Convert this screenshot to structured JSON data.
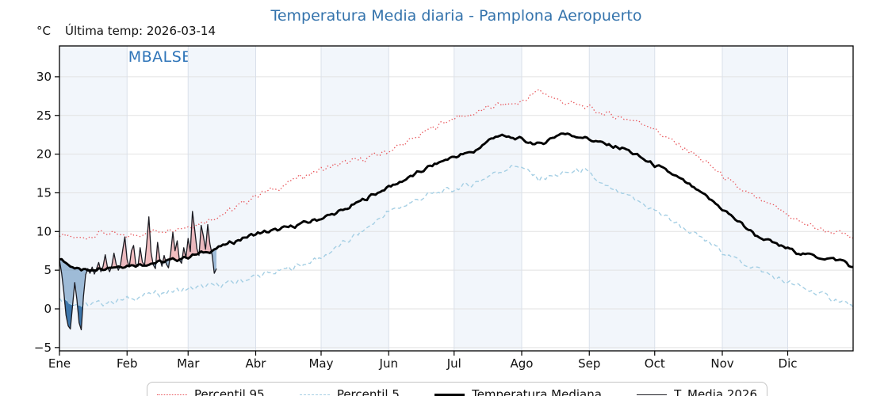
{
  "page": {
    "title": "Temperatura Media diaria - Pamplona Aeropuerto",
    "unit_label": "°C",
    "last_temp_annotation": "Última temp: 2026-03-14",
    "watermark": "WWW.EMBALSES.NET"
  },
  "colors": {
    "title_blue": "#3473ac",
    "watermark_blue": "#2e74b8",
    "p95_red": "#e8555a",
    "p5_blue": "#a5cfe4",
    "median_black": "#000000",
    "t2026_dark": "#1b1b22",
    "fill_above_median": "rgba(225,100,104,0.42)",
    "fill_below_median": "rgba(90,138,185,0.55)",
    "fill_below_p5": "#3d77ac",
    "month_band": "#f2f6fb",
    "grid_horizontal": "#e2e2e2",
    "grid_vertical": "#dae0ea",
    "axis_black": "#000000"
  },
  "legend": {
    "items": [
      {
        "label": "Percentil 95"
      },
      {
        "label": "Percentil 5"
      },
      {
        "label": "Temperatura Mediana"
      },
      {
        "label": "T. Media 2026"
      }
    ]
  },
  "chart_data": {
    "type": "line",
    "title": "Temperatura Media diaria - Pamplona Aeropuerto",
    "ylabel": "°C",
    "annotation": "Última temp: 2026-03-14",
    "months": [
      "Ene",
      "Feb",
      "Mar",
      "Abr",
      "May",
      "Jun",
      "Jul",
      "Ago",
      "Sep",
      "Oct",
      "Nov",
      "Dic"
    ],
    "month_start_days": [
      1,
      32,
      60,
      91,
      121,
      152,
      182,
      213,
      244,
      274,
      305,
      335
    ],
    "days_in_year": 365,
    "yticks": [
      -5,
      0,
      5,
      10,
      15,
      20,
      25,
      30
    ],
    "ylim": [
      -5.4,
      34.0
    ],
    "grid": true,
    "legend_position": "bottom",
    "series": [
      {
        "name": "Percentil 95",
        "style": "dotted",
        "width": 1.3,
        "x": [
          1,
          11,
          21,
          31,
          41,
          51,
          61,
          71,
          81,
          91,
          101,
          111,
          121,
          131,
          141,
          151,
          161,
          171,
          181,
          191,
          201,
          211,
          221,
          231,
          241,
          251,
          261,
          271,
          281,
          291,
          301,
          311,
          321,
          331,
          341,
          351,
          361,
          365
        ],
        "y": [
          9.4,
          9.1,
          9.9,
          9.3,
          9.9,
          10.3,
          10.7,
          11.7,
          12.9,
          14.7,
          15.6,
          17.0,
          18.0,
          18.8,
          19.4,
          20.3,
          21.6,
          23.2,
          24.6,
          25.2,
          26.3,
          26.5,
          28.2,
          26.8,
          26.2,
          25.2,
          24.6,
          23.8,
          21.8,
          20.2,
          18.2,
          15.8,
          14.2,
          12.8,
          11.2,
          10.2,
          9.6,
          9.0
        ]
      },
      {
        "name": "Percentil 5",
        "style": "dashed",
        "width": 1.4,
        "x": [
          1,
          11,
          21,
          31,
          41,
          51,
          61,
          71,
          81,
          91,
          101,
          111,
          121,
          131,
          141,
          151,
          161,
          171,
          181,
          191,
          201,
          211,
          221,
          231,
          241,
          251,
          261,
          271,
          281,
          291,
          301,
          311,
          321,
          331,
          341,
          351,
          361,
          365
        ],
        "y": [
          1.5,
          0.4,
          0.8,
          1.2,
          1.8,
          2.2,
          2.6,
          3.0,
          3.4,
          4.2,
          4.8,
          5.6,
          6.6,
          8.4,
          10.2,
          12.4,
          13.6,
          14.8,
          15.4,
          16.2,
          17.6,
          18.6,
          16.8,
          17.4,
          18.0,
          15.8,
          14.6,
          13.2,
          11.6,
          9.8,
          8.2,
          6.4,
          5.2,
          3.8,
          2.8,
          1.8,
          0.8,
          0.3
        ]
      },
      {
        "name": "Temperatura Mediana",
        "style": "solid",
        "width": 2.9,
        "x": [
          1,
          11,
          21,
          31,
          41,
          51,
          61,
          71,
          81,
          91,
          101,
          111,
          121,
          131,
          141,
          151,
          161,
          171,
          181,
          191,
          201,
          211,
          221,
          231,
          241,
          251,
          261,
          271,
          281,
          291,
          301,
          311,
          321,
          331,
          341,
          351,
          361,
          365
        ],
        "y": [
          6.4,
          5.0,
          5.3,
          5.6,
          5.8,
          6.2,
          6.8,
          7.6,
          8.7,
          9.7,
          10.2,
          10.9,
          11.7,
          12.7,
          14.2,
          15.6,
          16.9,
          18.4,
          19.6,
          20.3,
          22.4,
          22.0,
          21.2,
          22.7,
          22.2,
          21.3,
          20.6,
          19.0,
          17.6,
          15.8,
          13.8,
          11.6,
          9.4,
          8.2,
          7.2,
          6.6,
          6.2,
          5.2
        ]
      },
      {
        "name": "T. Media 2026",
        "style": "solid",
        "width": 1.3,
        "x": [
          1,
          2,
          3,
          4,
          5,
          6,
          7,
          8,
          9,
          10,
          11,
          12,
          13,
          14,
          15,
          16,
          17,
          18,
          19,
          20,
          21,
          22,
          23,
          24,
          25,
          26,
          27,
          28,
          29,
          30,
          31,
          32,
          33,
          34,
          35,
          36,
          37,
          38,
          39,
          40,
          41,
          42,
          43,
          44,
          45,
          46,
          47,
          48,
          49,
          50,
          51,
          52,
          53,
          54,
          55,
          56,
          57,
          58,
          59,
          60,
          61,
          62,
          63,
          64,
          65,
          66,
          67,
          68,
          69,
          70,
          71,
          72,
          73
        ],
        "y": [
          6.3,
          4.6,
          2.2,
          -0.8,
          -2.2,
          -2.6,
          0.4,
          3.4,
          1.2,
          -1.8,
          -2.7,
          1.6,
          4.4,
          5.2,
          4.6,
          5.4,
          4.5,
          5.2,
          6.0,
          4.8,
          5.5,
          7.0,
          5.4,
          4.8,
          5.6,
          7.2,
          5.8,
          5.0,
          5.7,
          7.6,
          9.3,
          6.4,
          5.4,
          7.5,
          8.2,
          5.8,
          5.5,
          7.9,
          6.1,
          5.6,
          8.4,
          11.9,
          7.3,
          5.7,
          5.2,
          8.6,
          6.5,
          5.5,
          6.9,
          5.8,
          5.3,
          7.2,
          9.9,
          7.5,
          8.8,
          6.3,
          5.9,
          7.9,
          6.6,
          9.1,
          7.4,
          12.6,
          10.3,
          7.8,
          6.9,
          10.8,
          9.4,
          7.7,
          10.9,
          8.4,
          7.0,
          4.6,
          5.2
        ]
      }
    ]
  }
}
